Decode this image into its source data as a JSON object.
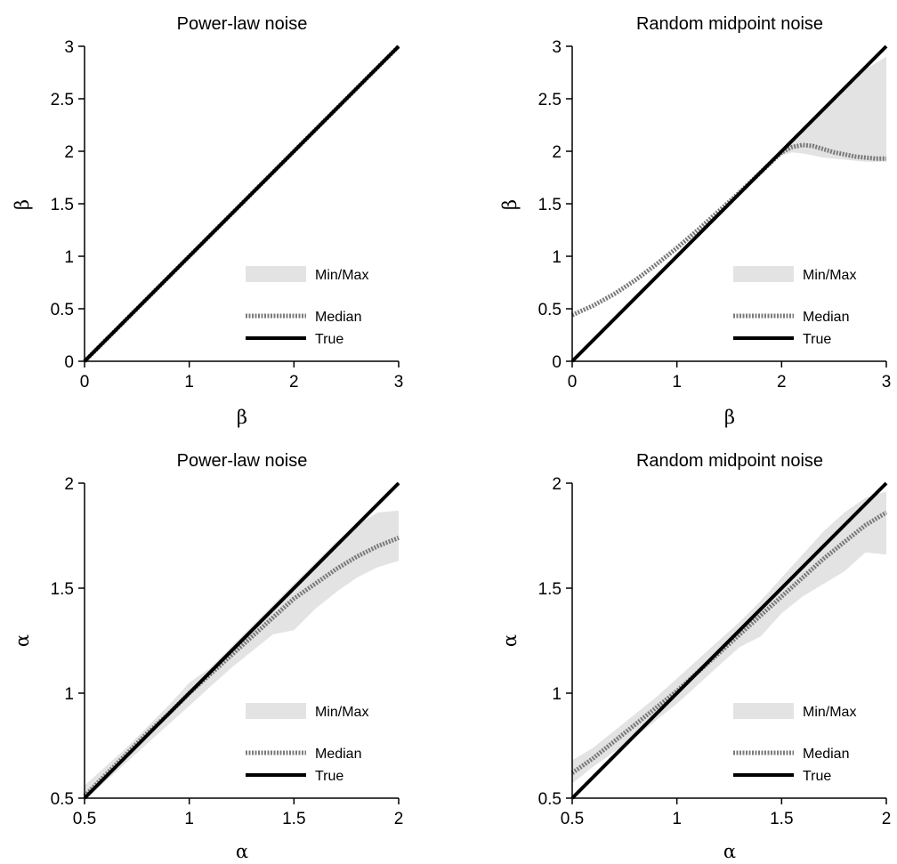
{
  "chart_data": [
    {
      "type": "line",
      "title": "Power-law noise",
      "xlabel": "β",
      "ylabel": "β",
      "xlim": [
        0,
        3
      ],
      "ylim": [
        0,
        3
      ],
      "xticks": [
        0,
        1,
        2,
        3
      ],
      "yticks": [
        0,
        0.5,
        1,
        1.5,
        2,
        2.5,
        3
      ],
      "xtick_labels": [
        "0",
        "1",
        "2",
        "3"
      ],
      "ytick_labels": [
        "0",
        "0.5",
        "1",
        "1.5",
        "2",
        "2.5",
        "3"
      ],
      "legend": [
        "Min/Max",
        "Median",
        "True"
      ],
      "legend_position": "lower-right",
      "band": {
        "x": [],
        "lower": [],
        "upper": []
      },
      "series": [
        {
          "name": "Median",
          "x": [
            0,
            3
          ],
          "y": [
            0,
            3
          ]
        },
        {
          "name": "True",
          "x": [
            0,
            3
          ],
          "y": [
            0,
            3
          ]
        }
      ]
    },
    {
      "type": "line",
      "title": "Random midpoint noise",
      "xlabel": "β",
      "ylabel": "β",
      "xlim": [
        0,
        3
      ],
      "ylim": [
        0,
        3
      ],
      "xticks": [
        0,
        1,
        2,
        3
      ],
      "yticks": [
        0,
        0.5,
        1,
        1.5,
        2,
        2.5,
        3
      ],
      "xtick_labels": [
        "0",
        "1",
        "2",
        "3"
      ],
      "ytick_labels": [
        "0",
        "0.5",
        "1",
        "1.5",
        "2",
        "2.5",
        "3"
      ],
      "legend": [
        "Min/Max",
        "Median",
        "True"
      ],
      "legend_position": "lower-right",
      "band": {
        "x": [
          1.9,
          2.0,
          2.1,
          2.2,
          2.3,
          2.4,
          2.5,
          2.6,
          2.7,
          2.8,
          2.9,
          3.0
        ],
        "lower": [
          1.9,
          1.96,
          1.99,
          1.98,
          1.96,
          1.94,
          1.93,
          1.92,
          1.91,
          1.9,
          1.9,
          1.9
        ],
        "upper": [
          1.9,
          2.0,
          2.1,
          2.2,
          2.3,
          2.4,
          2.5,
          2.6,
          2.7,
          2.78,
          2.84,
          2.9
        ]
      },
      "series": [
        {
          "name": "Median",
          "x": [
            0,
            0.2,
            0.4,
            0.6,
            0.8,
            1.0,
            1.2,
            1.4,
            1.6,
            1.8,
            2.0,
            2.1,
            2.2,
            2.3,
            2.4,
            2.5,
            2.6,
            2.7,
            2.8,
            2.9,
            3.0
          ],
          "y": [
            0.44,
            0.53,
            0.64,
            0.77,
            0.92,
            1.08,
            1.25,
            1.43,
            1.61,
            1.8,
            1.99,
            2.04,
            2.06,
            2.05,
            2.02,
            1.99,
            1.97,
            1.95,
            1.94,
            1.93,
            1.93
          ]
        },
        {
          "name": "True",
          "x": [
            0,
            3
          ],
          "y": [
            0,
            3
          ]
        }
      ]
    },
    {
      "type": "line",
      "title": "Power-law noise",
      "xlabel": "α",
      "ylabel": "α",
      "xlim": [
        0.5,
        2
      ],
      "ylim": [
        0.5,
        2
      ],
      "xticks": [
        0.5,
        1,
        1.5,
        2
      ],
      "yticks": [
        0.5,
        1,
        1.5,
        2
      ],
      "xtick_labels": [
        "0.5",
        "1",
        "1.5",
        "2"
      ],
      "ytick_labels": [
        "0.5",
        "1",
        "1.5",
        "2"
      ],
      "legend": [
        "Min/Max",
        "Median",
        "True"
      ],
      "legend_position": "lower-right",
      "band": {
        "x": [
          0.5,
          0.6,
          0.7,
          0.8,
          0.9,
          1.0,
          1.1,
          1.2,
          1.3,
          1.4,
          1.5,
          1.6,
          1.7,
          1.8,
          1.9,
          2.0
        ],
        "lower": [
          0.49,
          0.58,
          0.67,
          0.76,
          0.85,
          0.94,
          1.03,
          1.12,
          1.2,
          1.28,
          1.3,
          1.4,
          1.48,
          1.55,
          1.6,
          1.63
        ],
        "upper": [
          0.56,
          0.65,
          0.74,
          0.84,
          0.94,
          1.05,
          1.12,
          1.22,
          1.32,
          1.42,
          1.52,
          1.62,
          1.72,
          1.8,
          1.86,
          1.87
        ]
      },
      "series": [
        {
          "name": "Median",
          "x": [
            0.5,
            0.6,
            0.7,
            0.8,
            0.9,
            1.0,
            1.1,
            1.2,
            1.3,
            1.4,
            1.5,
            1.6,
            1.7,
            1.8,
            1.9,
            2.0
          ],
          "y": [
            0.51,
            0.61,
            0.71,
            0.81,
            0.9,
            1.0,
            1.09,
            1.18,
            1.27,
            1.36,
            1.45,
            1.52,
            1.59,
            1.65,
            1.7,
            1.74
          ]
        },
        {
          "name": "True",
          "x": [
            0.5,
            2
          ],
          "y": [
            0.5,
            2
          ]
        }
      ]
    },
    {
      "type": "line",
      "title": "Random midpoint noise",
      "xlabel": "α",
      "ylabel": "α",
      "xlim": [
        0.5,
        2
      ],
      "ylim": [
        0.5,
        2
      ],
      "xticks": [
        0.5,
        1,
        1.5,
        2
      ],
      "yticks": [
        0.5,
        1,
        1.5,
        2
      ],
      "xtick_labels": [
        "0.5",
        "1",
        "1.5",
        "2"
      ],
      "ytick_labels": [
        "0.5",
        "1",
        "1.5",
        "2"
      ],
      "legend": [
        "Min/Max",
        "Median",
        "True"
      ],
      "legend_position": "lower-right",
      "band": {
        "x": [
          0.5,
          0.6,
          0.7,
          0.8,
          0.9,
          1.0,
          1.1,
          1.2,
          1.3,
          1.4,
          1.5,
          1.6,
          1.7,
          1.8,
          1.9,
          2.0
        ],
        "lower": [
          0.57,
          0.65,
          0.72,
          0.79,
          0.87,
          0.95,
          1.04,
          1.13,
          1.22,
          1.27,
          1.38,
          1.46,
          1.52,
          1.58,
          1.67,
          1.66
        ],
        "upper": [
          0.68,
          0.74,
          0.82,
          0.9,
          0.98,
          1.07,
          1.16,
          1.25,
          1.34,
          1.44,
          1.55,
          1.66,
          1.77,
          1.86,
          1.93,
          1.96
        ]
      },
      "series": [
        {
          "name": "Median",
          "x": [
            0.5,
            0.6,
            0.7,
            0.8,
            0.9,
            1.0,
            1.1,
            1.2,
            1.3,
            1.4,
            1.5,
            1.6,
            1.7,
            1.8,
            1.9,
            2.0
          ],
          "y": [
            0.62,
            0.69,
            0.77,
            0.85,
            0.93,
            1.01,
            1.1,
            1.19,
            1.28,
            1.37,
            1.46,
            1.55,
            1.64,
            1.72,
            1.8,
            1.86
          ]
        },
        {
          "name": "True",
          "x": [
            0.5,
            2
          ],
          "y": [
            0.5,
            2
          ]
        }
      ]
    }
  ],
  "colors": {
    "band": "#e3e3e3",
    "median": "#7a7a7a",
    "true": "#000000",
    "axis": "#000000"
  }
}
